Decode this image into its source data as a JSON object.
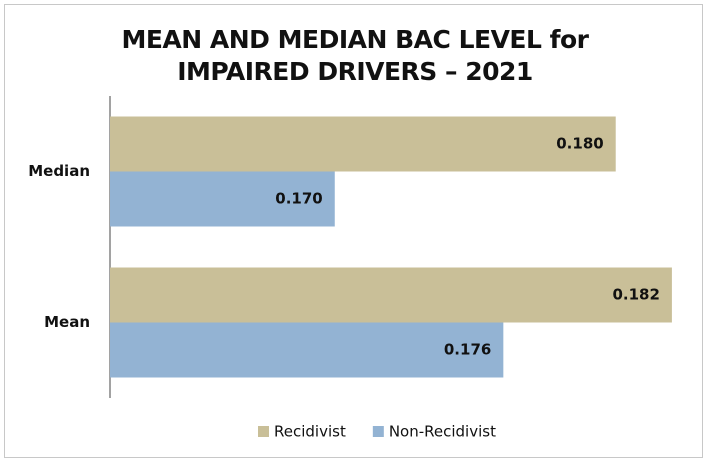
{
  "chart_data": {
    "type": "hbar",
    "title": "MEAN AND MEDIAN BAC LEVEL for IMPAIRED DRIVERS – 2021",
    "categories": [
      "Median",
      "Mean"
    ],
    "series": [
      {
        "name": "Recidivist",
        "color": "#c9bf98",
        "values": [
          0.18,
          0.182
        ],
        "value_labels": [
          "0.180",
          "0.182"
        ]
      },
      {
        "name": "Non-Recidivist",
        "color": "#93b3d3",
        "values": [
          0.17,
          0.176
        ],
        "value_labels": [
          "0.170",
          "0.176"
        ]
      }
    ],
    "xlim": [
      0.162,
      0.183
    ],
    "legend": "bottom"
  }
}
